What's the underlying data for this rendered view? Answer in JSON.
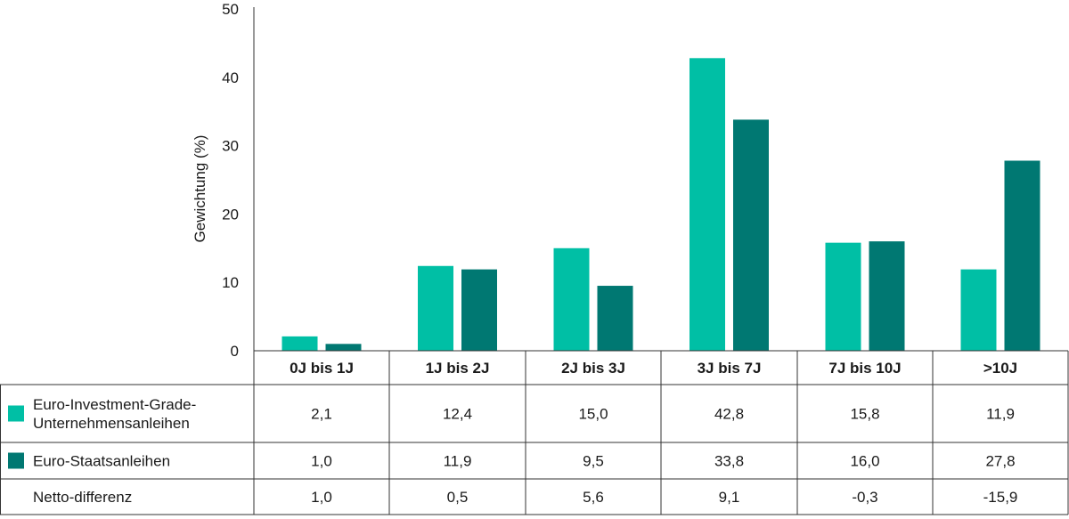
{
  "chart_data": {
    "type": "bar",
    "ylabel": "Gewichtung (%)",
    "ylim": [
      0,
      50
    ],
    "yticks": [
      0,
      10,
      20,
      30,
      40,
      50
    ],
    "categories": [
      "0J bis 1J",
      "1J bis 2J",
      "2J bis 3J",
      "3J bis 7J",
      "7J bis 10J",
      ">10J"
    ],
    "series": [
      {
        "name_lines": [
          "Euro-Investment-Grade-",
          "Unternehmensanleihen"
        ],
        "color": "#00bfa5",
        "values": [
          2.1,
          12.4,
          15.0,
          42.8,
          15.8,
          11.9
        ],
        "labels": [
          "2,1",
          "12,4",
          "15,0",
          "42,8",
          "15,8",
          "11,9"
        ]
      },
      {
        "name": "Euro-Staatsanleihen",
        "color": "#007872",
        "values": [
          1.0,
          11.9,
          9.5,
          33.8,
          16.0,
          27.8
        ],
        "labels": [
          "1,0",
          "11,9",
          "9,5",
          "33,8",
          "16,0",
          "27,8"
        ]
      }
    ],
    "table_rows": [
      {
        "label": "Netto-differenz",
        "values": [
          1.0,
          0.5,
          5.6,
          9.1,
          -0.3,
          -15.9
        ],
        "labels": [
          "1,0",
          "0,5",
          "5,6",
          "9,1",
          "-0,3",
          "-15,9"
        ]
      }
    ],
    "grid": false,
    "legend": "table-left"
  }
}
